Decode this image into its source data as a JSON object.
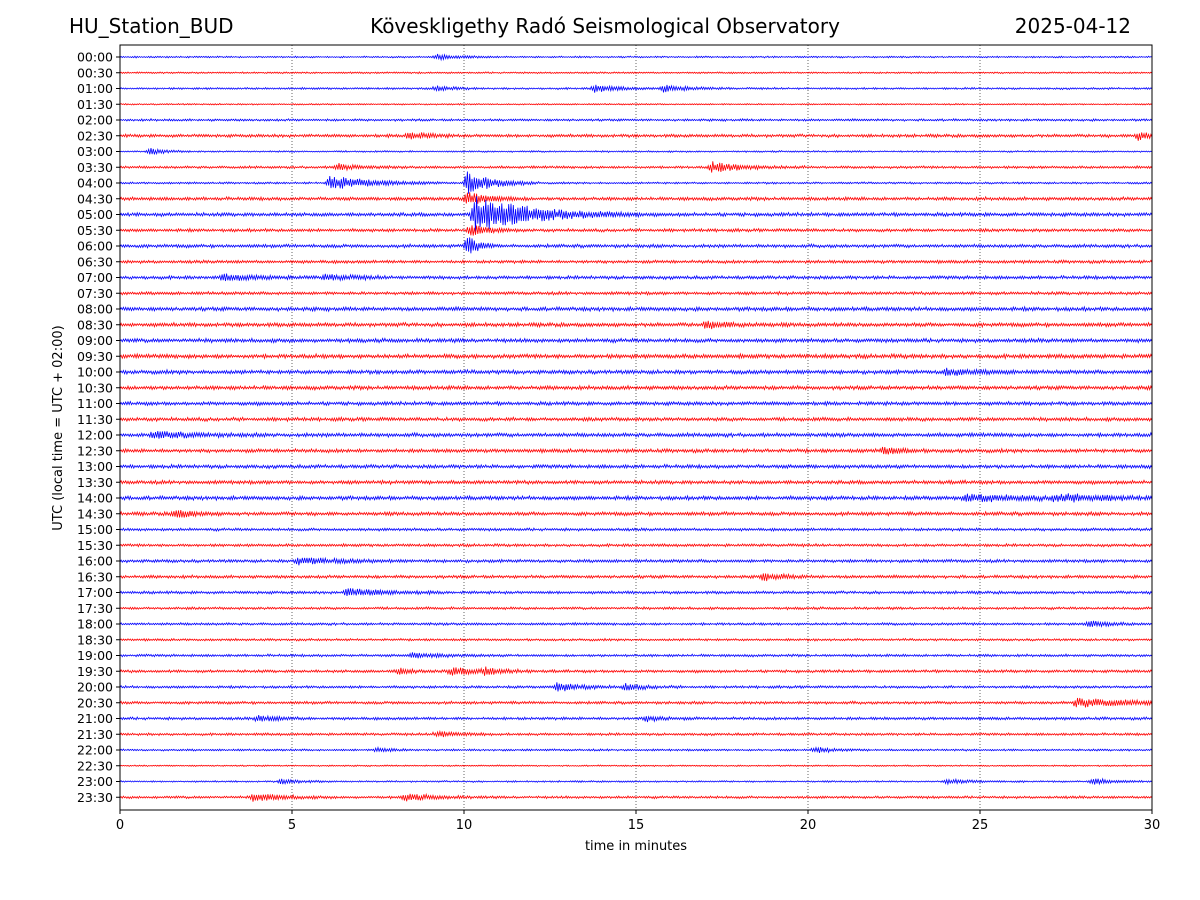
{
  "header": {
    "station": "HU_Station_BUD",
    "title": "Köveskligethy Radó Seismological Observatory",
    "date": "2025-04-12"
  },
  "chart_data": {
    "type": "line",
    "title": "Köveskligethy Radó Seismological Observatory",
    "xlabel": "time in minutes",
    "ylabel": "UTC (local time = UTC + 02:00)",
    "xlim": [
      0,
      30
    ],
    "xticks": [
      "0",
      "5",
      "10",
      "15",
      "20",
      "25",
      "30"
    ],
    "grid": "vertical dotted at major x ticks",
    "colors": [
      "#0000ff",
      "#ff0000"
    ],
    "rows": [
      {
        "label": "00:00",
        "color": "#0000ff",
        "noise": 0.6,
        "events": [
          {
            "t": 9.2,
            "amp": 1.5,
            "dur": 0.6
          }
        ]
      },
      {
        "label": "00:30",
        "color": "#ff0000",
        "noise": 0.6,
        "events": []
      },
      {
        "label": "01:00",
        "color": "#0000ff",
        "noise": 0.7,
        "events": [
          {
            "t": 9.2,
            "amp": 1.6,
            "dur": 0.4
          },
          {
            "t": 13.8,
            "amp": 2.2,
            "dur": 0.6
          },
          {
            "t": 15.8,
            "amp": 2.0,
            "dur": 0.7
          }
        ]
      },
      {
        "label": "01:30",
        "color": "#ff0000",
        "noise": 0.5,
        "events": []
      },
      {
        "label": "02:00",
        "color": "#0000ff",
        "noise": 0.8,
        "events": []
      },
      {
        "label": "02:30",
        "color": "#ff0000",
        "noise": 1.1,
        "events": [
          {
            "t": 8.4,
            "amp": 2.4,
            "dur": 0.5
          },
          {
            "t": 29.6,
            "amp": 2.6,
            "dur": 0.4
          }
        ]
      },
      {
        "label": "03:00",
        "color": "#0000ff",
        "noise": 0.6,
        "events": [
          {
            "t": 0.9,
            "amp": 1.8,
            "dur": 0.4
          }
        ]
      },
      {
        "label": "03:30",
        "color": "#ff0000",
        "noise": 0.9,
        "events": [
          {
            "t": 6.3,
            "amp": 2.0,
            "dur": 0.6
          },
          {
            "t": 17.2,
            "amp": 3.0,
            "dur": 0.9
          }
        ]
      },
      {
        "label": "04:00",
        "color": "#0000ff",
        "noise": 0.7,
        "events": [
          {
            "t": 6.1,
            "amp": 4.5,
            "dur": 1.1
          },
          {
            "t": 10.1,
            "amp": 7.0,
            "dur": 0.7
          }
        ]
      },
      {
        "label": "04:30",
        "color": "#ff0000",
        "noise": 1.2,
        "events": [
          {
            "t": 10.1,
            "amp": 4.0,
            "dur": 0.6
          }
        ]
      },
      {
        "label": "05:00",
        "color": "#0000ff",
        "noise": 1.3,
        "events": [
          {
            "t": 10.3,
            "amp": 11.0,
            "dur": 1.6
          }
        ]
      },
      {
        "label": "05:30",
        "color": "#ff0000",
        "noise": 1.1,
        "events": [
          {
            "t": 10.2,
            "amp": 3.0,
            "dur": 0.5
          }
        ]
      },
      {
        "label": "06:00",
        "color": "#0000ff",
        "noise": 1.2,
        "events": [
          {
            "t": 10.1,
            "amp": 6.0,
            "dur": 0.3
          }
        ]
      },
      {
        "label": "06:30",
        "color": "#ff0000",
        "noise": 1.1,
        "events": []
      },
      {
        "label": "07:00",
        "color": "#0000ff",
        "noise": 1.2,
        "events": [
          {
            "t": 3.0,
            "amp": 1.6,
            "dur": 1.0
          },
          {
            "t": 6.0,
            "amp": 1.5,
            "dur": 0.8
          }
        ]
      },
      {
        "label": "07:30",
        "color": "#ff0000",
        "noise": 1.1,
        "events": []
      },
      {
        "label": "08:00",
        "color": "#0000ff",
        "noise": 1.4,
        "events": []
      },
      {
        "label": "08:30",
        "color": "#ff0000",
        "noise": 1.4,
        "events": [
          {
            "t": 17.0,
            "amp": 1.8,
            "dur": 0.8
          }
        ]
      },
      {
        "label": "09:00",
        "color": "#0000ff",
        "noise": 1.4,
        "events": []
      },
      {
        "label": "09:30",
        "color": "#ff0000",
        "noise": 1.5,
        "events": []
      },
      {
        "label": "10:00",
        "color": "#0000ff",
        "noise": 1.4,
        "events": [
          {
            "t": 24.0,
            "amp": 1.8,
            "dur": 0.8
          }
        ]
      },
      {
        "label": "10:30",
        "color": "#ff0000",
        "noise": 1.4,
        "events": []
      },
      {
        "label": "11:00",
        "color": "#0000ff",
        "noise": 1.3,
        "events": []
      },
      {
        "label": "11:30",
        "color": "#ff0000",
        "noise": 1.3,
        "events": []
      },
      {
        "label": "12:00",
        "color": "#0000ff",
        "noise": 1.4,
        "events": [
          {
            "t": 1.0,
            "amp": 1.8,
            "dur": 1.0
          }
        ]
      },
      {
        "label": "12:30",
        "color": "#ff0000",
        "noise": 1.3,
        "events": [
          {
            "t": 22.2,
            "amp": 1.9,
            "dur": 0.5
          }
        ]
      },
      {
        "label": "13:00",
        "color": "#0000ff",
        "noise": 1.3,
        "events": []
      },
      {
        "label": "13:30",
        "color": "#ff0000",
        "noise": 1.3,
        "events": []
      },
      {
        "label": "14:00",
        "color": "#0000ff",
        "noise": 1.4,
        "events": [
          {
            "t": 24.6,
            "amp": 2.0,
            "dur": 1.6
          },
          {
            "t": 27.2,
            "amp": 1.9,
            "dur": 1.4
          }
        ]
      },
      {
        "label": "14:30",
        "color": "#ff0000",
        "noise": 1.3,
        "events": [
          {
            "t": 1.6,
            "amp": 2.3,
            "dur": 0.5
          }
        ]
      },
      {
        "label": "15:00",
        "color": "#0000ff",
        "noise": 1.0,
        "events": []
      },
      {
        "label": "15:30",
        "color": "#ff0000",
        "noise": 1.0,
        "events": []
      },
      {
        "label": "16:00",
        "color": "#0000ff",
        "noise": 1.1,
        "events": [
          {
            "t": 5.2,
            "amp": 2.2,
            "dur": 1.0
          }
        ]
      },
      {
        "label": "16:30",
        "color": "#ff0000",
        "noise": 1.1,
        "events": [
          {
            "t": 18.7,
            "amp": 2.0,
            "dur": 0.6
          }
        ]
      },
      {
        "label": "17:00",
        "color": "#0000ff",
        "noise": 1.0,
        "events": [
          {
            "t": 6.6,
            "amp": 2.4,
            "dur": 1.0
          }
        ]
      },
      {
        "label": "17:30",
        "color": "#ff0000",
        "noise": 0.9,
        "events": []
      },
      {
        "label": "18:00",
        "color": "#0000ff",
        "noise": 0.9,
        "events": [
          {
            "t": 28.2,
            "amp": 2.0,
            "dur": 0.5
          }
        ]
      },
      {
        "label": "18:30",
        "color": "#ff0000",
        "noise": 0.8,
        "events": []
      },
      {
        "label": "19:00",
        "color": "#0000ff",
        "noise": 0.9,
        "events": [
          {
            "t": 8.5,
            "amp": 1.4,
            "dur": 0.8
          }
        ]
      },
      {
        "label": "19:30",
        "color": "#ff0000",
        "noise": 1.0,
        "events": [
          {
            "t": 8.1,
            "amp": 1.9,
            "dur": 0.4
          },
          {
            "t": 9.6,
            "amp": 2.2,
            "dur": 0.8
          },
          {
            "t": 10.6,
            "amp": 1.8,
            "dur": 0.5
          }
        ]
      },
      {
        "label": "20:00",
        "color": "#0000ff",
        "noise": 0.9,
        "events": [
          {
            "t": 12.7,
            "amp": 2.6,
            "dur": 0.7
          },
          {
            "t": 14.7,
            "amp": 1.8,
            "dur": 0.6
          }
        ]
      },
      {
        "label": "20:30",
        "color": "#ff0000",
        "noise": 1.0,
        "events": [
          {
            "t": 27.8,
            "amp": 2.6,
            "dur": 1.6
          }
        ]
      },
      {
        "label": "21:00",
        "color": "#0000ff",
        "noise": 1.0,
        "events": [
          {
            "t": 4.0,
            "amp": 1.6,
            "dur": 0.6
          },
          {
            "t": 15.3,
            "amp": 1.5,
            "dur": 0.5
          }
        ]
      },
      {
        "label": "21:30",
        "color": "#ff0000",
        "noise": 0.9,
        "events": [
          {
            "t": 9.2,
            "amp": 1.8,
            "dur": 0.6
          }
        ]
      },
      {
        "label": "22:00",
        "color": "#0000ff",
        "noise": 0.7,
        "events": [
          {
            "t": 7.5,
            "amp": 1.5,
            "dur": 0.4
          },
          {
            "t": 20.2,
            "amp": 1.6,
            "dur": 0.5
          }
        ]
      },
      {
        "label": "22:30",
        "color": "#ff0000",
        "noise": 0.5,
        "events": []
      },
      {
        "label": "23:00",
        "color": "#0000ff",
        "noise": 0.6,
        "events": [
          {
            "t": 4.7,
            "amp": 1.5,
            "dur": 0.5
          },
          {
            "t": 24.0,
            "amp": 1.3,
            "dur": 0.8
          },
          {
            "t": 28.3,
            "amp": 2.0,
            "dur": 0.5
          }
        ]
      },
      {
        "label": "23:30",
        "color": "#ff0000",
        "noise": 0.9,
        "events": [
          {
            "t": 3.9,
            "amp": 2.4,
            "dur": 0.8
          },
          {
            "t": 8.3,
            "amp": 2.0,
            "dur": 0.8
          }
        ]
      }
    ]
  }
}
